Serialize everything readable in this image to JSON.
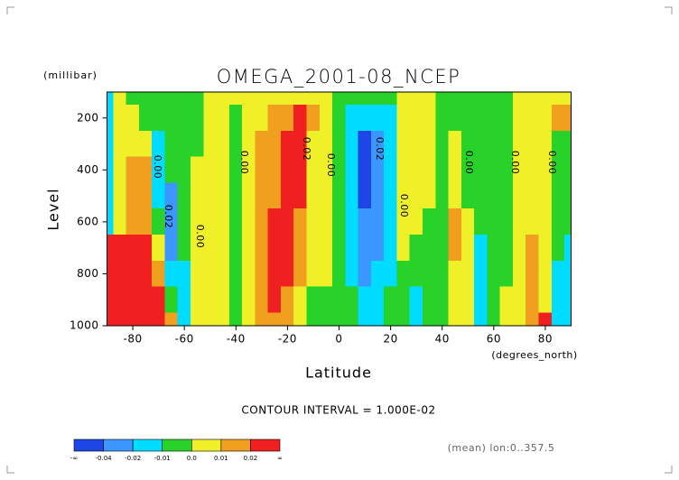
{
  "chart_data": {
    "type": "contour",
    "title": "OMEGA_2001-08_NCEP",
    "y_units": "(millibar)",
    "y_label": "Level",
    "x_label": "Latitude",
    "x_units": "(degrees_north)",
    "contour_interval": "CONTOUR INTERVAL = 1.000E-02",
    "footnote": "(mean) lon:0..357.5",
    "xlim": [
      -90,
      90
    ],
    "xticks": [
      -80,
      -60,
      -40,
      -20,
      0,
      20,
      40,
      60,
      80
    ],
    "ylim": [
      1000,
      100
    ],
    "yticks": [
      200,
      400,
      600,
      800,
      1000
    ],
    "lats": [
      -90,
      -85,
      -80,
      -75,
      -70,
      -65,
      -60,
      -55,
      -50,
      -45,
      -40,
      -35,
      -30,
      -25,
      -20,
      -15,
      -10,
      -5,
      0,
      5,
      10,
      15,
      20,
      25,
      30,
      35,
      40,
      45,
      50,
      55,
      60,
      65,
      70,
      75,
      80,
      85,
      90
    ],
    "levels": [
      100,
      200,
      300,
      400,
      500,
      600,
      700,
      800,
      900,
      1000
    ],
    "z": [
      [
        -0.015,
        -0.015,
        -0.015,
        -0.015,
        -0.015,
        -0.015,
        0.05,
        0.05,
        0.05,
        0.05
      ],
      [
        0.005,
        0.005,
        0.005,
        0.005,
        0.005,
        0.005,
        0.05,
        0.05,
        0.05,
        0.05
      ],
      [
        -0.005,
        0.005,
        0.005,
        0.015,
        0.015,
        0.015,
        0.05,
        0.05,
        0.05,
        0.05
      ],
      [
        -0.005,
        -0.005,
        0.005,
        0.015,
        0.015,
        0.015,
        0.05,
        0.05,
        0.05,
        0.05
      ],
      [
        -0.005,
        -0.005,
        -0.015,
        -0.015,
        -0.015,
        -0.005,
        0.005,
        0.015,
        0.05,
        0.05
      ],
      [
        -0.005,
        -0.005,
        -0.005,
        -0.005,
        -0.03,
        -0.03,
        -0.03,
        -0.015,
        -0.005,
        0.015
      ],
      [
        -0.005,
        -0.005,
        -0.005,
        -0.005,
        -0.005,
        -0.005,
        -0.005,
        -0.015,
        -0.015,
        -0.015
      ],
      [
        -0.005,
        -0.005,
        -0.005,
        0.005,
        0.005,
        0.005,
        0.005,
        0.005,
        0.005,
        0.005
      ],
      [
        0.005,
        0.005,
        0.005,
        0.005,
        0.005,
        0.005,
        0.005,
        0.005,
        0.005,
        0.005
      ],
      [
        0.005,
        0.005,
        0.005,
        0.005,
        0.005,
        0.005,
        0.005,
        0.005,
        0.005,
        0.005
      ],
      [
        0.005,
        -0.005,
        -0.005,
        -0.005,
        -0.005,
        -0.005,
        -0.005,
        -0.005,
        -0.005,
        -0.005
      ],
      [
        0.005,
        0.005,
        0.005,
        0.005,
        0.005,
        0.005,
        0.005,
        0.005,
        0.005,
        0.005
      ],
      [
        0.005,
        0.005,
        0.015,
        0.015,
        0.015,
        0.015,
        0.015,
        0.015,
        0.015,
        0.015
      ],
      [
        0.005,
        0.015,
        0.015,
        0.015,
        0.015,
        0.05,
        0.05,
        0.05,
        0.05,
        0.015
      ],
      [
        0.005,
        0.015,
        0.05,
        0.05,
        0.05,
        0.05,
        0.05,
        0.05,
        0.015,
        0.015
      ],
      [
        0.005,
        0.05,
        0.05,
        0.05,
        0.05,
        0.015,
        0.015,
        0.015,
        0.005,
        0.005
      ],
      [
        0.005,
        0.015,
        0.005,
        0.005,
        0.005,
        0.005,
        0.005,
        0.005,
        -0.005,
        -0.005
      ],
      [
        0.005,
        0.005,
        0.005,
        0.005,
        0.005,
        0.005,
        0.005,
        0.005,
        -0.005,
        -0.005
      ],
      [
        -0.005,
        -0.005,
        -0.005,
        -0.005,
        -0.005,
        -0.005,
        -0.005,
        -0.005,
        -0.005,
        -0.005
      ],
      [
        -0.005,
        -0.015,
        -0.015,
        -0.015,
        -0.015,
        -0.015,
        -0.015,
        -0.015,
        -0.005,
        -0.005
      ],
      [
        -0.005,
        -0.015,
        -0.05,
        -0.05,
        -0.05,
        -0.03,
        -0.03,
        -0.03,
        -0.015,
        -0.015
      ],
      [
        -0.005,
        -0.015,
        -0.03,
        -0.03,
        -0.03,
        -0.03,
        -0.03,
        -0.015,
        -0.015,
        -0.015
      ],
      [
        -0.005,
        -0.015,
        -0.015,
        -0.015,
        -0.015,
        -0.015,
        -0.015,
        -0.015,
        -0.005,
        -0.005
      ],
      [
        0.005,
        0.005,
        0.005,
        0.005,
        0.005,
        0.005,
        0.005,
        -0.005,
        -0.005,
        -0.005
      ],
      [
        0.005,
        0.005,
        0.005,
        0.005,
        0.005,
        0.005,
        -0.005,
        -0.005,
        -0.015,
        -0.015
      ],
      [
        0.005,
        0.005,
        0.005,
        0.005,
        0.005,
        -0.005,
        -0.005,
        -0.005,
        -0.005,
        -0.005
      ],
      [
        -0.005,
        -0.005,
        -0.005,
        -0.005,
        -0.005,
        -0.005,
        -0.005,
        -0.005,
        -0.005,
        -0.005
      ],
      [
        -0.005,
        -0.005,
        0.005,
        0.005,
        0.005,
        0.015,
        0.015,
        0.005,
        0.005,
        0.005
      ],
      [
        -0.005,
        -0.005,
        -0.005,
        -0.005,
        -0.005,
        0.005,
        0.005,
        0.005,
        0.005,
        0.005
      ],
      [
        -0.005,
        -0.005,
        -0.005,
        -0.005,
        -0.005,
        -0.005,
        -0.015,
        -0.015,
        -0.015,
        -0.015
      ],
      [
        -0.005,
        -0.005,
        -0.005,
        -0.005,
        -0.005,
        -0.005,
        -0.005,
        -0.005,
        -0.005,
        -0.005
      ],
      [
        -0.005,
        -0.005,
        -0.005,
        -0.005,
        -0.005,
        -0.005,
        -0.005,
        -0.005,
        0.005,
        0.005
      ],
      [
        0.005,
        0.005,
        0.005,
        0.005,
        0.005,
        0.005,
        0.005,
        0.005,
        0.005,
        0.005
      ],
      [
        0.005,
        0.005,
        0.005,
        0.005,
        0.005,
        0.005,
        0.015,
        0.015,
        0.015,
        0.015
      ],
      [
        0.005,
        0.005,
        0.005,
        0.005,
        0.005,
        0.005,
        0.005,
        0.005,
        0.005,
        0.05
      ],
      [
        0.005,
        0.015,
        -0.005,
        -0.005,
        -0.005,
        -0.005,
        -0.005,
        -0.015,
        -0.015,
        -0.015
      ],
      [
        0.005,
        0.015,
        -0.005,
        -0.005,
        -0.005,
        -0.005,
        -0.015,
        -0.015,
        -0.015,
        -0.015
      ]
    ],
    "contour_labels": [
      "0.00",
      "0.02",
      "0.00",
      "0.00",
      "0.02",
      "0.00",
      "0.02",
      "0.00",
      "0.00",
      "0.00",
      "0.00"
    ],
    "colorbar": {
      "colors": [
        "#1e46e6",
        "#3c96ff",
        "#00dcff",
        "#28d228",
        "#f0f028",
        "#f0a01e",
        "#f02020"
      ],
      "levels": [
        -0.04,
        -0.02,
        -0.01,
        {
          "value": 0,
          "label": "0.0"
        },
        0.01,
        0.02
      ],
      "end_labels": [
        "-∞",
        "∞"
      ]
    }
  }
}
